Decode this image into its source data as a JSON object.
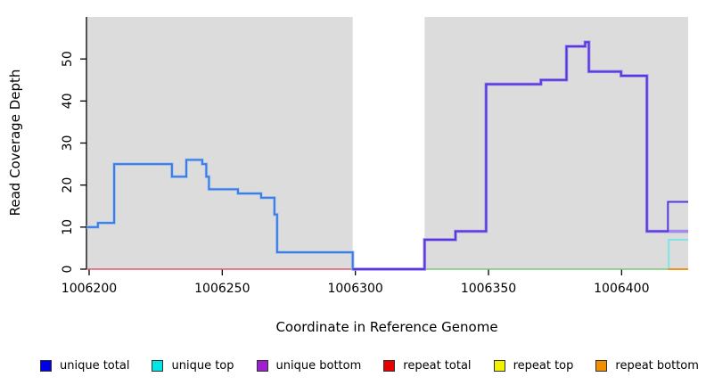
{
  "chart_data": {
    "type": "line",
    "subtype": "step-coverage-plot",
    "title": "",
    "xlabel": "Coordinate in Reference Genome",
    "ylabel": "Read Coverage Depth",
    "xlim": [
      1006199,
      1006425
    ],
    "ylim": [
      0,
      60
    ],
    "xticks": [
      1006200,
      1006250,
      1006300,
      1006350,
      1006400
    ],
    "yticks": [
      0,
      10,
      20,
      30,
      40,
      50
    ],
    "grid": false,
    "plot_background": "#DCDCDC",
    "uncovered_band": {
      "x0": 1006299,
      "x1": 1006326,
      "color": "#FFFFFF"
    },
    "axis_color": "#000000",
    "series": [
      {
        "name": "repeat-total-zero-line",
        "color": "#E25A6E",
        "width": 1.6,
        "points": [
          [
            1006199,
            0
          ]
        ],
        "end": 1006299
      },
      {
        "name": "unique-top-left-halo",
        "color": "#A6C8F2",
        "width": 3.6,
        "points": [
          [
            1006199,
            10
          ],
          [
            1006203.3,
            11
          ],
          [
            1006209.4,
            25
          ],
          [
            1006231.1,
            22
          ],
          [
            1006236.5,
            26
          ],
          [
            1006242.5,
            25
          ],
          [
            1006244,
            22
          ],
          [
            1006245,
            19
          ],
          [
            1006255.9,
            18
          ],
          [
            1006264.6,
            17
          ],
          [
            1006269.6,
            13
          ],
          [
            1006270.6,
            4
          ],
          [
            1006299,
            0
          ]
        ],
        "end": 1006300
      },
      {
        "name": "unique-total-left",
        "color": "#3E7ADF",
        "width": 2,
        "points": [
          [
            1006199,
            10
          ],
          [
            1006203.3,
            11
          ],
          [
            1006209.4,
            25
          ],
          [
            1006231.1,
            22
          ],
          [
            1006236.5,
            26
          ],
          [
            1006242.5,
            25
          ],
          [
            1006244,
            22
          ],
          [
            1006245,
            19
          ],
          [
            1006255.9,
            18
          ],
          [
            1006264.6,
            17
          ],
          [
            1006269.6,
            13
          ],
          [
            1006270.6,
            4
          ],
          [
            1006299,
            0
          ]
        ],
        "end": 1006300
      },
      {
        "name": "unique-top-repeat-top-zero-line",
        "color": "#7CC77C",
        "width": 1.6,
        "points": [
          [
            1006326,
            0
          ]
        ],
        "end": 1006417.4
      },
      {
        "name": "unique-bottom",
        "color": "#A28BEA",
        "width": 3.6,
        "points": [
          [
            1006299,
            0
          ],
          [
            1006326,
            7
          ],
          [
            1006337.6,
            9
          ],
          [
            1006349.1,
            44
          ],
          [
            1006369.7,
            45
          ],
          [
            1006379.3,
            53
          ],
          [
            1006386.3,
            54
          ],
          [
            1006387.7,
            47
          ],
          [
            1006399.8,
            46
          ],
          [
            1006409.5,
            9
          ]
        ],
        "end": 1006425
      },
      {
        "name": "unique-total-right",
        "color": "#5639DC",
        "width": 2,
        "points": [
          [
            1006299,
            0
          ],
          [
            1006326,
            7
          ],
          [
            1006337.6,
            9
          ],
          [
            1006349.1,
            44
          ],
          [
            1006369.7,
            45
          ],
          [
            1006379.3,
            53
          ],
          [
            1006386.3,
            54
          ],
          [
            1006387.7,
            47
          ],
          [
            1006399.8,
            46
          ],
          [
            1006409.5,
            9
          ],
          [
            1006417.4,
            16
          ]
        ],
        "end": 1006425
      },
      {
        "name": "unique-top-right",
        "color": "#7EE4E4",
        "width": 2,
        "points": [
          [
            1006417.4,
            0
          ],
          [
            1006417.7,
            7
          ]
        ],
        "end": 1006425
      },
      {
        "name": "repeat-bottom-zero-line",
        "color": "#F5921E",
        "width": 2,
        "points": [
          [
            1006417.4,
            0
          ]
        ],
        "end": 1006425
      }
    ],
    "legend": [
      {
        "label": "unique total",
        "color": "#0000E6"
      },
      {
        "label": "unique top",
        "color": "#00E6E6"
      },
      {
        "label": "unique bottom",
        "color": "#9D21CF"
      },
      {
        "label": "repeat total",
        "color": "#E80000"
      },
      {
        "label": "repeat top",
        "color": "#F2F200"
      },
      {
        "label": "repeat bottom",
        "color": "#F09000"
      }
    ]
  }
}
